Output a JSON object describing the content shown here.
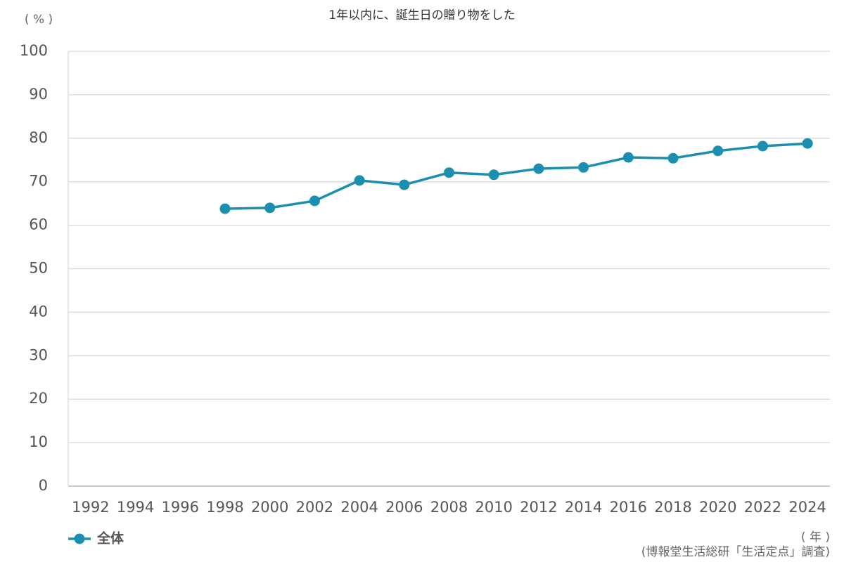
{
  "chart_data": {
    "type": "line",
    "title": "1年以内に、誕生日の贈り物をした",
    "y_label": "( % )",
    "x_label": "( 年 )",
    "source": "(博報堂生活総研「生活定点」調査)",
    "categories": [
      "1992",
      "1994",
      "1996",
      "1998",
      "2000",
      "2002",
      "2004",
      "2006",
      "2008",
      "2010",
      "2012",
      "2014",
      "2016",
      "2018",
      "2020",
      "2022",
      "2024"
    ],
    "series": [
      {
        "name": "全体",
        "color": "#1a8fb0",
        "values": [
          null,
          null,
          null,
          63.8,
          64.0,
          65.6,
          70.3,
          69.3,
          72.1,
          71.6,
          73.0,
          73.3,
          75.6,
          75.4,
          77.1,
          78.2,
          78.8
        ]
      }
    ],
    "ylim": [
      0,
      100
    ],
    "yticks": [
      0,
      10,
      20,
      30,
      40,
      50,
      60,
      70,
      80,
      90,
      100
    ],
    "grid": true
  }
}
